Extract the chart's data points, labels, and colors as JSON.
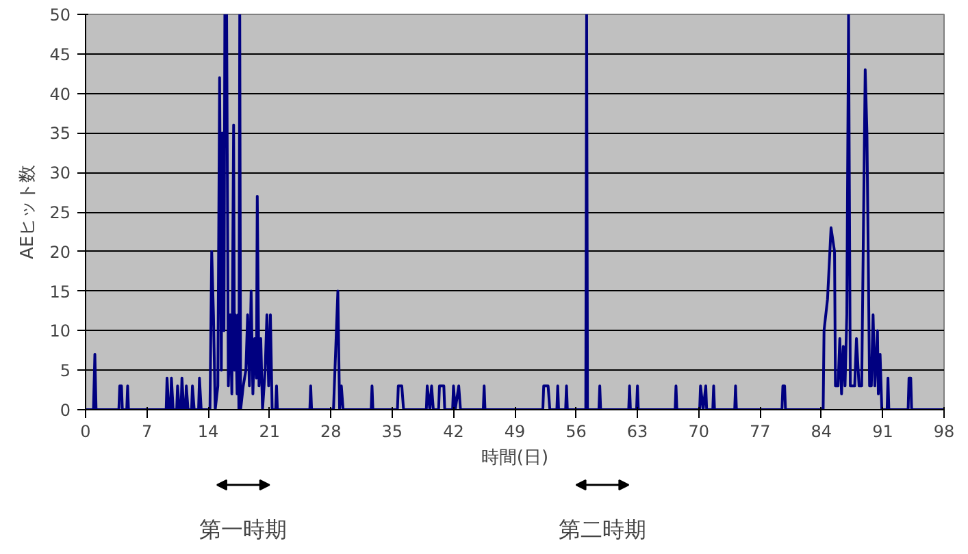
{
  "chart_data": {
    "type": "line",
    "xlabel": "時間(日)",
    "ylabel": "AEヒット数",
    "annotations": [
      "第一時期",
      "第二時期"
    ],
    "x": [
      0,
      0.9,
      1.06,
      1.2,
      3.8,
      3.9,
      4.1,
      4.2,
      4.7,
      4.8,
      4.9,
      9.2,
      9.3,
      9.5,
      9.7,
      9.8,
      10,
      10.4,
      10.5,
      10.7,
      10.9,
      11,
      11.2,
      11.4,
      11.5,
      11.7,
      12.1,
      12.2,
      12.4,
      12.9,
      13,
      13.2,
      14.2,
      14.4,
      14.6,
      14.8,
      15.1,
      15.3,
      15.5,
      15.6,
      15.8,
      15.9,
      16.1,
      16.3,
      16.5,
      16.7,
      16.9,
      17.0,
      17.1,
      17.3,
      17.4,
      17.5,
      17.6,
      17.7,
      18.0,
      18.3,
      18.5,
      18.7,
      18.9,
      19.1,
      19.3,
      19.5,
      19.6,
      19.8,
      20.0,
      20.2,
      20.5,
      20.7,
      20.9,
      21.1,
      21.3,
      21.7,
      21.8,
      21.9,
      25.6,
      25.7,
      25.8,
      28.3,
      28.5,
      28.8,
      29.0,
      29.2,
      29.4,
      32.6,
      32.7,
      32.8,
      35.6,
      35.7,
      36.1,
      36.3,
      38.9,
      39,
      39.3,
      39.5,
      39.7,
      40.3,
      40.4,
      40.9,
      41,
      41.9,
      42,
      42.2,
      42.6,
      42.8,
      45.4,
      45.5,
      45.6,
      52.2,
      52.3,
      52.8,
      53,
      53.8,
      53.9,
      54,
      54.8,
      54.9,
      55,
      57.1,
      57.2,
      57.3,
      58.6,
      58.7,
      58.8,
      62,
      62.1,
      62.2,
      62.9,
      63,
      63.1,
      67.3,
      67.4,
      67.5,
      70.1,
      70.2,
      70.5,
      70.8,
      70.9,
      71.6,
      71.7,
      71.8,
      74.1,
      74.2,
      74.3,
      79.5,
      79.6,
      79.8,
      79.9,
      84.2,
      84.3,
      84.7,
      85.1,
      85.5,
      85.6,
      85.9,
      86.1,
      86.3,
      86.5,
      86.7,
      86.9,
      87.1,
      87.3,
      87.5,
      87.8,
      88.0,
      88.3,
      88.6,
      89,
      89.2,
      89.5,
      89.7,
      89.9,
      90.1,
      90.4,
      90.5,
      90.7,
      90.9,
      91.5,
      91.6,
      91.7,
      93.9,
      94,
      94.2,
      94.3,
      98
    ],
    "series": [
      {
        "color": "#000080",
        "values": [
          0,
          0,
          7,
          0,
          0,
          3,
          3,
          0,
          0,
          3,
          0,
          0,
          4,
          0,
          0,
          4,
          0,
          0,
          3,
          0,
          0,
          4,
          0,
          0,
          3,
          0,
          0,
          3,
          0,
          0,
          4,
          0,
          0,
          20,
          12,
          0,
          3,
          42,
          5,
          35,
          10,
          50,
          50,
          3,
          12,
          2,
          36,
          5,
          12,
          2,
          12,
          0,
          50,
          0,
          3,
          5,
          12,
          3,
          15,
          2,
          9,
          4,
          27,
          3,
          9,
          0,
          5,
          12,
          3,
          12,
          0,
          0,
          3,
          0,
          0,
          3,
          0,
          0,
          6,
          15,
          0,
          3,
          0,
          0,
          3,
          0,
          0,
          3,
          3,
          0,
          0,
          3,
          0,
          3,
          0,
          0,
          3,
          3,
          0,
          0,
          3,
          0,
          3,
          0,
          0,
          3,
          0,
          0,
          3,
          3,
          0,
          0,
          3,
          0,
          0,
          3,
          0,
          0,
          50,
          0,
          0,
          3,
          0,
          0,
          3,
          0,
          0,
          3,
          0,
          0,
          3,
          0,
          0,
          3,
          0,
          3,
          0,
          0,
          3,
          0,
          0,
          3,
          0,
          0,
          3,
          3,
          0,
          0,
          10,
          14,
          23,
          20,
          3,
          3,
          9,
          2,
          8,
          3,
          12,
          50,
          3,
          3,
          3,
          9,
          3,
          3,
          43,
          35,
          3,
          3,
          12,
          3,
          10,
          2,
          7,
          0,
          0,
          4,
          0,
          0,
          4,
          4,
          0,
          0
        ]
      }
    ],
    "xlim": [
      0,
      98
    ],
    "xticks": [
      0,
      7,
      14,
      21,
      28,
      35,
      42,
      49,
      56,
      63,
      70,
      77,
      84,
      91,
      98
    ],
    "ylim": [
      0,
      50
    ],
    "yticks": [
      0,
      5,
      10,
      15,
      20,
      25,
      30,
      35,
      40,
      45,
      50
    ],
    "grid": "y"
  }
}
